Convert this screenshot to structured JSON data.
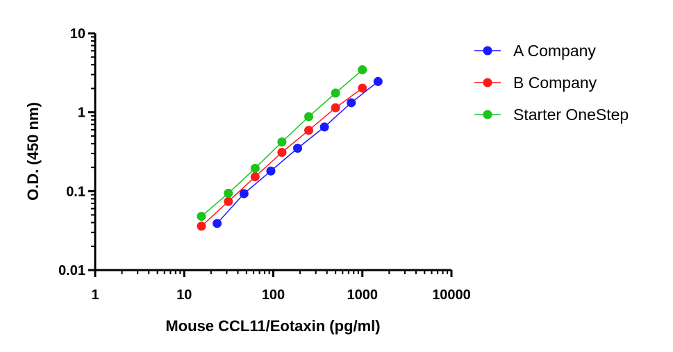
{
  "chart_data": {
    "type": "scatter",
    "xlabel": "Mouse CCL11/Eotaxin (pg/ml)",
    "ylabel": "O.D. (450 nm)",
    "xscale": "log",
    "yscale": "log",
    "xlim": [
      1,
      10000
    ],
    "ylim": [
      0.01,
      10
    ],
    "x_ticks": [
      1,
      10,
      100,
      1000,
      10000
    ],
    "x_tick_labels": [
      "1",
      "10",
      "100",
      "1000",
      "10000"
    ],
    "y_ticks": [
      0.01,
      0.1,
      1,
      10
    ],
    "y_tick_labels": [
      "0.01",
      "0.1",
      "1",
      "10"
    ],
    "grid": false,
    "legend_position": "right",
    "series": [
      {
        "name": "A Company",
        "color": "#1a1aff",
        "x": [
          23.4,
          46.9,
          93.8,
          187.5,
          375,
          750,
          1500
        ],
        "y": [
          0.039,
          0.093,
          0.18,
          0.35,
          0.65,
          1.32,
          2.45
        ]
      },
      {
        "name": "B Company",
        "color": "#ff1a1a",
        "x": [
          15.6,
          31.3,
          62.5,
          125,
          250,
          500,
          1000
        ],
        "y": [
          0.036,
          0.074,
          0.152,
          0.31,
          0.59,
          1.14,
          2.02
        ]
      },
      {
        "name": "Starter OneStep",
        "color": "#1ac41a",
        "x": [
          15.6,
          31.3,
          62.5,
          125,
          250,
          500,
          1000
        ],
        "y": [
          0.048,
          0.094,
          0.195,
          0.42,
          0.88,
          1.75,
          3.45
        ]
      }
    ]
  }
}
